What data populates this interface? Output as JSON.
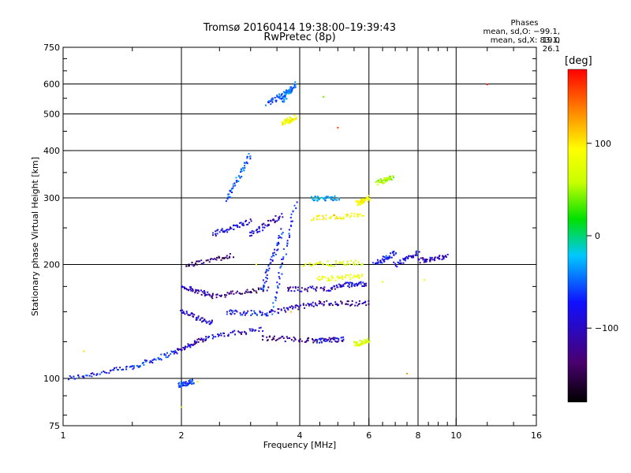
{
  "title_line1": "Tromsø 20160414 19:38:00–19:39:43",
  "title_line2": "RwPretec (8p)",
  "phase_header": "Phases",
  "phase_o": "mean, sd,O: −99.1, 19.0",
  "phase_x": "mean, sd,X: 83.1, 26.1",
  "colorbar": {
    "label": "[deg]",
    "ticks": [
      "100",
      "0",
      "−100"
    ],
    "tick_values": [
      100,
      0,
      -100
    ],
    "range": [
      -180,
      180
    ]
  },
  "chart_data": {
    "type": "scatter",
    "xlabel": "Frequency [MHz]",
    "ylabel": "Stationary phase Virtual Height [km]",
    "x_scale": "log",
    "y_scale": "log",
    "xlim": [
      1,
      16
    ],
    "ylim": [
      75,
      750
    ],
    "x_ticks": [
      "1",
      "2",
      "4",
      "6",
      "8",
      "10",
      "16"
    ],
    "x_tick_values": [
      1,
      2,
      4,
      6,
      8,
      10,
      16
    ],
    "y_ticks": [
      "750",
      "600",
      "500",
      "400",
      "300",
      "200",
      "100",
      "75"
    ],
    "y_tick_values": [
      750,
      600,
      500,
      400,
      300,
      200,
      100,
      75
    ],
    "grid": true,
    "traces": [
      {
        "x": [
          1.03,
          1.5
        ],
        "y": [
          100,
          107
        ],
        "phase": -100
      },
      {
        "x": [
          1.5,
          1.95
        ],
        "y": [
          107,
          118
        ],
        "phase": -95
      },
      {
        "x": [
          1.95,
          2.3
        ],
        "y": [
          118,
          128
        ],
        "phase": -120
      },
      {
        "x": [
          2.3,
          3.2
        ],
        "y": [
          128,
          135
        ],
        "phase": -110
      },
      {
        "x": [
          3.2,
          4.4
        ],
        "y": [
          128,
          126
        ],
        "phase": -140
      },
      {
        "x": [
          4.4,
          5.2
        ],
        "y": [
          126,
          127
        ],
        "phase": -110
      },
      {
        "x": [
          2.0,
          2.4
        ],
        "y": [
          175,
          165
        ],
        "phase": -120
      },
      {
        "x": [
          2.4,
          3.3
        ],
        "y": [
          165,
          172
        ],
        "phase": -140
      },
      {
        "x": [
          2.0,
          2.4
        ],
        "y": [
          150,
          140
        ],
        "phase": -115
      },
      {
        "x": [
          2.6,
          3.4
        ],
        "y": [
          150,
          148
        ],
        "phase": -100
      },
      {
        "x": [
          3.4,
          4.5
        ],
        "y": [
          150,
          158
        ],
        "phase": -120
      },
      {
        "x": [
          4.5,
          6.0
        ],
        "y": [
          158,
          158
        ],
        "phase": -130
      },
      {
        "x": [
          3.7,
          5.0
        ],
        "y": [
          172,
          173
        ],
        "phase": -120
      },
      {
        "x": [
          5.0,
          5.9
        ],
        "y": [
          176,
          178
        ],
        "phase": -110
      },
      {
        "x": [
          2.05,
          2.7
        ],
        "y": [
          198,
          212
        ],
        "phase": -140
      },
      {
        "x": [
          2.4,
          3.0
        ],
        "y": [
          240,
          260
        ],
        "phase": -110
      },
      {
        "x": [
          3.0,
          3.6
        ],
        "y": [
          240,
          270
        ],
        "phase": -120
      },
      {
        "x": [
          3.2,
          3.6
        ],
        "y": [
          170,
          245
        ],
        "phase": -100
      },
      {
        "x": [
          3.4,
          3.9
        ],
        "y": [
          150,
          290
        ],
        "phase": -90
      },
      {
        "x": [
          2.6,
          3.0
        ],
        "y": [
          295,
          390
        ],
        "phase": -80
      },
      {
        "x": [
          3.3,
          3.8
        ],
        "y": [
          530,
          580
        ],
        "phase": -80
      },
      {
        "x": [
          3.6,
          3.9
        ],
        "y": [
          540,
          600
        ],
        "phase": -70
      },
      {
        "x": [
          3.6,
          3.9
        ],
        "y": [
          470,
          490
        ],
        "phase": 90
      },
      {
        "x": [
          4.3,
          5.8
        ],
        "y": [
          265,
          270
        ],
        "phase": 90
      },
      {
        "x": [
          4.3,
          5.0
        ],
        "y": [
          298,
          300
        ],
        "phase": -60
      },
      {
        "x": [
          4.1,
          5.8
        ],
        "y": [
          200,
          202
        ],
        "phase": 60
      },
      {
        "x": [
          4.4,
          5.8
        ],
        "y": [
          183,
          186
        ],
        "phase": 80
      },
      {
        "x": [
          5.5,
          6.0
        ],
        "y": [
          123,
          126
        ],
        "phase": 60
      },
      {
        "x": [
          6.2,
          7.0
        ],
        "y": [
          200,
          215
        ],
        "phase": -100
      },
      {
        "x": [
          7.0,
          8.0
        ],
        "y": [
          200,
          215
        ],
        "phase": -110
      },
      {
        "x": [
          8.0,
          9.5
        ],
        "y": [
          205,
          210
        ],
        "phase": -120
      },
      {
        "x": [
          6.3,
          6.9
        ],
        "y": [
          328,
          340
        ],
        "phase": 40
      },
      {
        "x": [
          1.97,
          2.15
        ],
        "y": [
          96,
          98
        ],
        "phase": -90
      },
      {
        "x": [
          5.6,
          6.0
        ],
        "y": [
          290,
          300
        ],
        "phase": 90
      }
    ],
    "outliers": [
      {
        "x": 5.0,
        "y": 460,
        "phase": 160
      },
      {
        "x": 12.0,
        "y": 598,
        "phase": 170
      },
      {
        "x": 7.5,
        "y": 103,
        "phase": 130
      },
      {
        "x": 2.2,
        "y": 98,
        "phase": 110
      },
      {
        "x": 2.0,
        "y": 84,
        "phase": 40
      },
      {
        "x": 4.6,
        "y": 555,
        "phase": 20
      },
      {
        "x": 3.1,
        "y": 200,
        "phase": 100
      },
      {
        "x": 3.8,
        "y": 150,
        "phase": 120
      },
      {
        "x": 4.9,
        "y": 270,
        "phase": 130
      },
      {
        "x": 1.13,
        "y": 118,
        "phase": 110
      },
      {
        "x": 6.5,
        "y": 180,
        "phase": 60
      },
      {
        "x": 8.3,
        "y": 182,
        "phase": 90
      }
    ]
  }
}
